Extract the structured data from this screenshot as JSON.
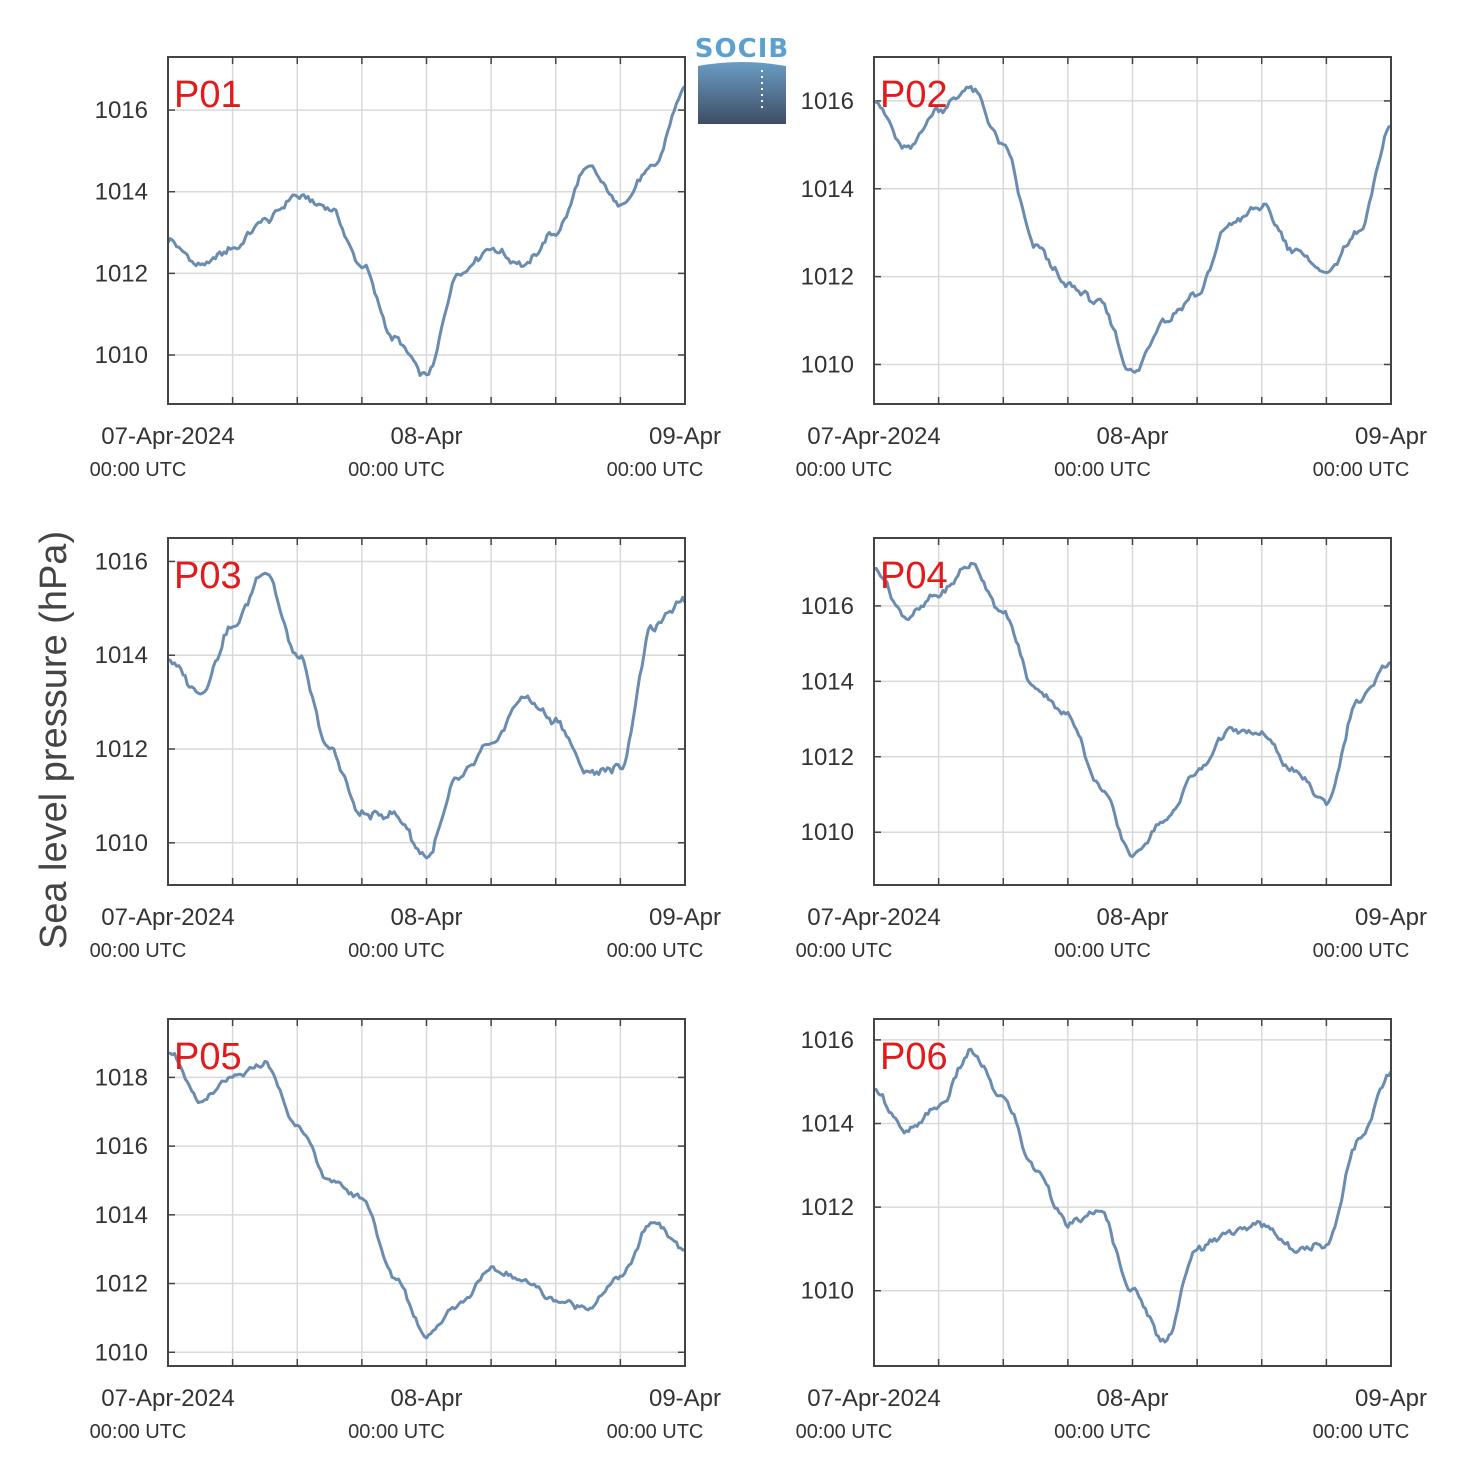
{
  "figure": {
    "ylabel": "Sea level pressure (hPa)",
    "logo_text": "SOCIB",
    "colors": {
      "line": "#6a8cb0",
      "label": "#e31a1c",
      "grid": "#d9d9d9",
      "axis": "#444444"
    }
  },
  "chart_data": [
    {
      "type": "line",
      "panel": "P01",
      "ylim": [
        1008.8,
        1017.3
      ],
      "yticks": [
        1010,
        1012,
        1014,
        1016
      ],
      "grid": true,
      "x_ticks": [
        [
          "07-Apr-2024",
          "00:00 UTC"
        ],
        [
          "08-Apr",
          "00:00 UTC"
        ],
        [
          "09-Apr",
          "00:00 UTC"
        ]
      ],
      "x_hours": [
        0,
        3,
        6,
        9,
        12,
        15,
        18,
        21,
        24,
        27,
        30,
        33,
        36,
        39,
        42,
        45,
        48
      ],
      "y": [
        1012.8,
        1012.2,
        1012.6,
        1013.3,
        1013.9,
        1013.6,
        1012.2,
        1010.4,
        1009.5,
        1012.0,
        1012.6,
        1012.2,
        1013.0,
        1014.6,
        1013.7,
        1014.6,
        1016.5
      ]
    },
    {
      "type": "line",
      "panel": "P02",
      "ylim": [
        1009.1,
        1017.0
      ],
      "yticks": [
        1010,
        1012,
        1014,
        1016
      ],
      "grid": true,
      "x_ticks": [
        [
          "07-Apr-2024",
          "00:00 UTC"
        ],
        [
          "08-Apr",
          "00:00 UTC"
        ],
        [
          "09-Apr",
          "00:00 UTC"
        ]
      ],
      "x_hours": [
        0,
        3,
        6,
        9,
        12,
        15,
        18,
        21,
        24,
        27,
        30,
        33,
        36,
        39,
        42,
        45,
        48
      ],
      "y": [
        1016.0,
        1014.9,
        1015.8,
        1016.3,
        1015.0,
        1012.7,
        1011.8,
        1011.4,
        1009.8,
        1011.0,
        1011.6,
        1013.2,
        1013.6,
        1012.6,
        1012.1,
        1013.0,
        1015.4
      ]
    },
    {
      "type": "line",
      "panel": "P03",
      "ylim": [
        1009.1,
        1016.5
      ],
      "yticks": [
        1010,
        1012,
        1014,
        1016
      ],
      "grid": true,
      "x_ticks": [
        [
          "07-Apr-2024",
          "00:00 UTC"
        ],
        [
          "08-Apr",
          "00:00 UTC"
        ],
        [
          "09-Apr",
          "00:00 UTC"
        ]
      ],
      "x_hours": [
        0,
        3,
        6,
        9,
        12,
        15,
        18,
        21,
        24,
        27,
        30,
        33,
        36,
        39,
        42,
        45,
        48
      ],
      "y": [
        1013.9,
        1013.2,
        1014.6,
        1015.8,
        1014.0,
        1012.0,
        1010.6,
        1010.6,
        1009.7,
        1011.4,
        1012.1,
        1013.1,
        1012.6,
        1011.5,
        1011.6,
        1014.6,
        1015.2
      ]
    },
    {
      "type": "line",
      "panel": "P04",
      "ylim": [
        1008.6,
        1017.8
      ],
      "yticks": [
        1010,
        1012,
        1014,
        1016
      ],
      "grid": true,
      "x_ticks": [
        [
          "07-Apr-2024",
          "00:00 UTC"
        ],
        [
          "08-Apr",
          "00:00 UTC"
        ],
        [
          "09-Apr",
          "00:00 UTC"
        ]
      ],
      "x_hours": [
        0,
        3,
        6,
        9,
        12,
        15,
        18,
        21,
        24,
        27,
        30,
        33,
        36,
        39,
        42,
        45,
        48
      ],
      "y": [
        1017.0,
        1015.7,
        1016.3,
        1017.1,
        1015.8,
        1013.8,
        1013.1,
        1011.2,
        1009.4,
        1010.3,
        1011.6,
        1012.7,
        1012.6,
        1011.6,
        1010.8,
        1013.5,
        1014.5
      ]
    },
    {
      "type": "line",
      "panel": "P05",
      "ylim": [
        1009.6,
        1019.7
      ],
      "yticks": [
        1010,
        1012,
        1014,
        1016,
        1018
      ],
      "grid": true,
      "x_ticks": [
        [
          "07-Apr-2024",
          "00:00 UTC"
        ],
        [
          "08-Apr",
          "00:00 UTC"
        ],
        [
          "09-Apr",
          "00:00 UTC"
        ]
      ],
      "x_hours": [
        0,
        3,
        6,
        9,
        12,
        15,
        18,
        21,
        24,
        27,
        30,
        33,
        36,
        39,
        42,
        45,
        48
      ],
      "y": [
        1018.8,
        1017.3,
        1018.0,
        1018.4,
        1016.6,
        1015.0,
        1014.5,
        1012.2,
        1010.5,
        1011.4,
        1012.4,
        1012.1,
        1011.5,
        1011.3,
        1012.2,
        1013.8,
        1013.0
      ]
    },
    {
      "type": "line",
      "panel": "P06",
      "ylim": [
        1008.2,
        1016.5
      ],
      "yticks": [
        1010,
        1012,
        1014,
        1016
      ],
      "grid": true,
      "x_ticks": [
        [
          "07-Apr-2024",
          "00:00 UTC"
        ],
        [
          "08-Apr",
          "00:00 UTC"
        ],
        [
          "09-Apr",
          "00:00 UTC"
        ]
      ],
      "x_hours": [
        0,
        3,
        6,
        9,
        12,
        15,
        18,
        21,
        24,
        27,
        30,
        33,
        36,
        39,
        42,
        45,
        48
      ],
      "y": [
        1014.8,
        1013.8,
        1014.4,
        1015.7,
        1014.6,
        1012.9,
        1011.6,
        1011.9,
        1010.0,
        1008.8,
        1011.0,
        1011.4,
        1011.6,
        1011.0,
        1011.1,
        1013.6,
        1015.2
      ]
    }
  ]
}
